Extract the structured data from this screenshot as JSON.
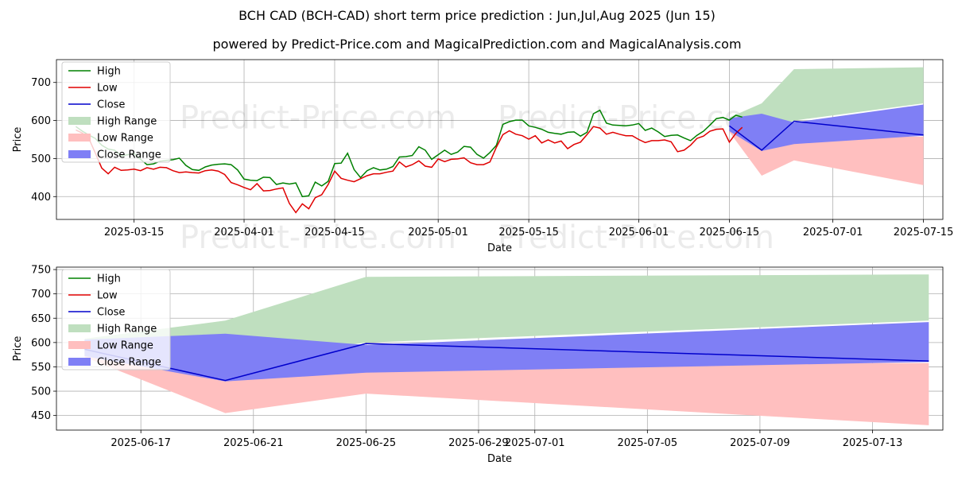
{
  "title": "BCH CAD (BCH-CAD) short term price prediction : Jun,Jul,Aug 2025 (Jun 15)",
  "subtitle": "powered by Predict-Price.com and MagicalPrediction.com and MagicalAnalysis.com",
  "watermark": "Predict-Price.com",
  "colors": {
    "high": "#008000",
    "low": "#e00000",
    "close": "#0000cc",
    "high_range": "#bfdfbf",
    "low_range": "#ffbfbf",
    "close_range": "#7f7ff5"
  },
  "chart_data": [
    {
      "type": "line",
      "xlabel": "Date",
      "ylabel": "Price",
      "grid": true,
      "legend_position": "top-left",
      "legend": [
        "High",
        "Low",
        "Close",
        "High Range",
        "Low Range",
        "Close Range"
      ],
      "xlim": [
        "2025-03-03",
        "2025-07-18"
      ],
      "ylim": [
        340,
        760
      ],
      "x_ticks": [
        "2025-03-15",
        "2025-04-01",
        "2025-04-15",
        "2025-05-01",
        "2025-05-15",
        "2025-06-01",
        "2025-06-15",
        "2025-07-01",
        "2025-07-15"
      ],
      "y_ticks": [
        400,
        500,
        600,
        700
      ],
      "history": {
        "start_date": "2025-03-06",
        "high": [
          584,
          572,
          562,
          553,
          535,
          525,
          522,
          507,
          510,
          513,
          498,
          484,
          486,
          493,
          495,
          497,
          501,
          482,
          471,
          469,
          478,
          483,
          485,
          486,
          484,
          470,
          446,
          443,
          442,
          451,
          450,
          432,
          436,
          433,
          436,
          400,
          402,
          438,
          428,
          440,
          487,
          488,
          514,
          471,
          450,
          468,
          476,
          470,
          472,
          479,
          504,
          505,
          508,
          531,
          522,
          498,
          510,
          522,
          511,
          517,
          532,
          530,
          511,
          501,
          516,
          535,
          590,
          597,
          601,
          601,
          586,
          582,
          577,
          569,
          566,
          564,
          569,
          570,
          559,
          569,
          618,
          627,
          593,
          588,
          587,
          586,
          588,
          592,
          574,
          580,
          570,
          558,
          561,
          562,
          554,
          547,
          561,
          572,
          588,
          605,
          608,
          601,
          614,
          609
        ],
        "low": [
          575,
          567,
          553,
          515,
          475,
          460,
          477,
          469,
          470,
          472,
          468,
          476,
          472,
          477,
          476,
          468,
          463,
          465,
          463,
          462,
          468,
          470,
          467,
          458,
          437,
          431,
          424,
          418,
          434,
          415,
          416,
          420,
          423,
          382,
          358,
          381,
          368,
          397,
          405,
          432,
          467,
          448,
          443,
          439,
          447,
          455,
          460,
          460,
          464,
          467,
          491,
          478,
          484,
          494,
          480,
          477,
          499,
          492,
          498,
          499,
          502,
          489,
          484,
          484,
          491,
          530,
          563,
          573,
          564,
          560,
          551,
          560,
          541,
          549,
          541,
          546,
          526,
          537,
          543,
          563,
          584,
          580,
          564,
          569,
          564,
          560,
          560,
          550,
          542,
          547,
          547,
          549,
          544,
          518,
          522,
          535,
          553,
          559,
          572,
          577,
          578,
          543,
          566,
          582
        ]
      },
      "forecast": {
        "dates": [
          "2025-06-15",
          "2025-06-20",
          "2025-06-25",
          "2025-07-15"
        ],
        "close": [
          586,
          522,
          598,
          562
        ],
        "high_range": {
          "upper": [
            608,
            645,
            735,
            740
          ],
          "lower": [
            578,
            560,
            600,
            645
          ]
        },
        "low_range": {
          "upper": [
            600,
            568,
            555,
            558
          ],
          "lower": [
            570,
            455,
            495,
            430
          ]
        },
        "close_range": {
          "upper": [
            606,
            618,
            595,
            642
          ],
          "lower": [
            572,
            520,
            538,
            560
          ]
        }
      }
    },
    {
      "type": "line",
      "xlabel": "Date",
      "ylabel": "Price",
      "grid": true,
      "legend_position": "top-left",
      "legend": [
        "High",
        "Low",
        "Close",
        "High Range",
        "Low Range",
        "Close Range"
      ],
      "xlim": [
        "2025-06-14.0",
        "2025-07-15.5"
      ],
      "ylim": [
        420,
        755
      ],
      "x_ticks": [
        "2025-06-17",
        "2025-06-21",
        "2025-06-25",
        "2025-06-29",
        "2025-07-01",
        "2025-07-05",
        "2025-07-09",
        "2025-07-13"
      ],
      "y_ticks": [
        450,
        500,
        550,
        600,
        650,
        700,
        750
      ],
      "forecast": {
        "dates": [
          "2025-06-15",
          "2025-06-20",
          "2025-06-25",
          "2025-07-15"
        ],
        "close": [
          586,
          522,
          598,
          562
        ],
        "high_range": {
          "upper": [
            608,
            645,
            735,
            740
          ],
          "lower": [
            578,
            560,
            600,
            645
          ]
        },
        "low_range": {
          "upper": [
            600,
            568,
            555,
            558
          ],
          "lower": [
            570,
            455,
            495,
            430
          ]
        },
        "close_range": {
          "upper": [
            606,
            618,
            595,
            642
          ],
          "lower": [
            572,
            520,
            538,
            560
          ]
        }
      }
    }
  ]
}
